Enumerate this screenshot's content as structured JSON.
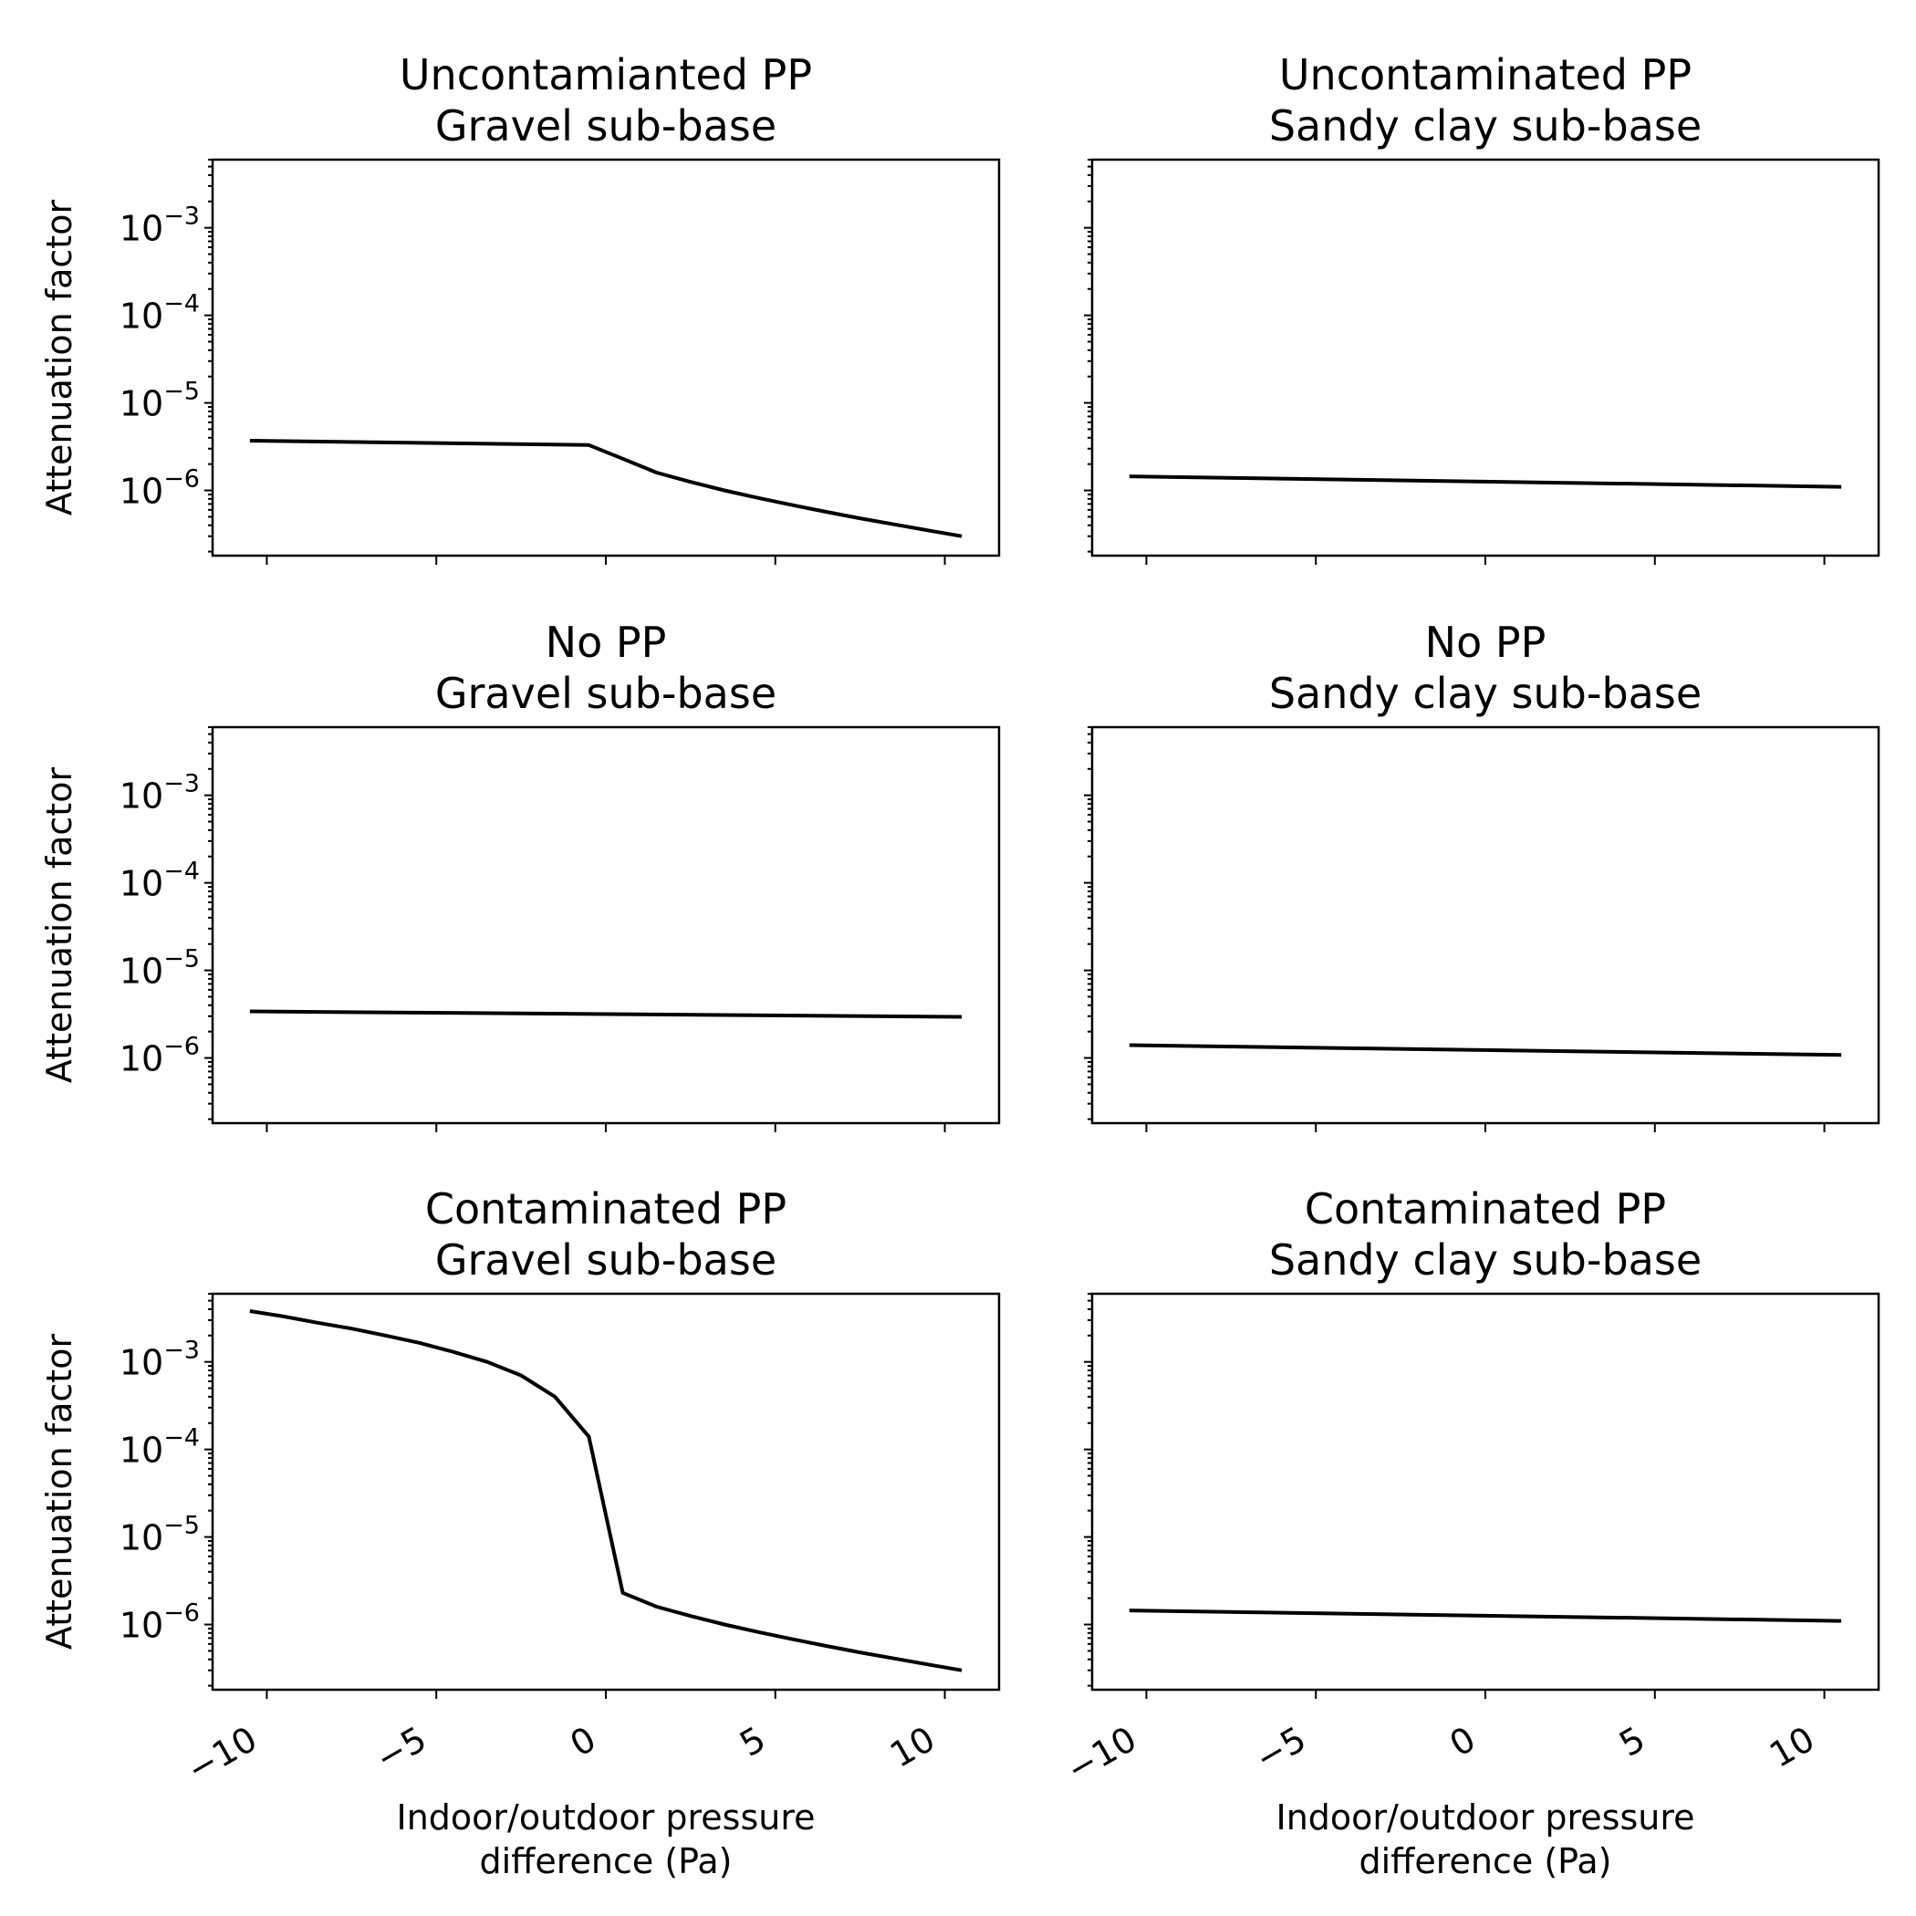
{
  "chart_data": [
    {
      "type": "line",
      "title": [
        "Uncontamianted PP",
        "Gravel sub-base"
      ],
      "ylabel": "Attenuation factor",
      "xlabel": "",
      "y_scale": "log",
      "xlim": [
        -11.6,
        11.6
      ],
      "ylim": [
        1.8e-07,
        0.006
      ],
      "x_ticks": [
        -10,
        -5,
        0,
        5,
        10
      ],
      "y_ticks": [
        {
          "value": 0.001,
          "base": "10",
          "exp": "−3"
        },
        {
          "value": 0.0001,
          "base": "10",
          "exp": "−4"
        },
        {
          "value": 1e-05,
          "base": "10",
          "exp": "−5"
        },
        {
          "value": 1e-06,
          "base": "10",
          "exp": "−6"
        }
      ],
      "series": [
        {
          "color": "#000000",
          "x": [
            -10.5,
            -0.5,
            0.5,
            1.5,
            2.5,
            3.5,
            4.5,
            5.5,
            6.5,
            7.5,
            8.5,
            9.5,
            10.5
          ],
          "y": [
            3.7e-06,
            3.3e-06,
            2.3e-06,
            1.6e-06,
            1.25e-06,
            1e-06,
            8.2e-07,
            6.8e-07,
            5.7e-07,
            4.8e-07,
            4.1e-07,
            3.5e-07,
            3e-07
          ]
        }
      ]
    },
    {
      "type": "line",
      "title": [
        "Uncontaminated PP",
        "Sandy clay sub-base"
      ],
      "ylabel": "",
      "xlabel": "",
      "y_scale": "log",
      "xlim": [
        -11.6,
        11.6
      ],
      "ylim": [
        1.8e-07,
        0.006
      ],
      "x_ticks": [
        -10,
        -5,
        0,
        5,
        10
      ],
      "y_ticks": [],
      "series": [
        {
          "color": "#000000",
          "x": [
            -10.5,
            10.5
          ],
          "y": [
            1.45e-06,
            1.1e-06
          ]
        }
      ]
    },
    {
      "type": "line",
      "title": [
        "No PP",
        "Gravel sub-base"
      ],
      "ylabel": "Attenuation factor",
      "xlabel": "",
      "y_scale": "log",
      "xlim": [
        -11.6,
        11.6
      ],
      "ylim": [
        1.8e-07,
        0.006
      ],
      "x_ticks": [
        -10,
        -5,
        0,
        5,
        10
      ],
      "y_ticks": [
        {
          "value": 0.001,
          "base": "10",
          "exp": "−3"
        },
        {
          "value": 0.0001,
          "base": "10",
          "exp": "−4"
        },
        {
          "value": 1e-05,
          "base": "10",
          "exp": "−5"
        },
        {
          "value": 1e-06,
          "base": "10",
          "exp": "−6"
        }
      ],
      "series": [
        {
          "color": "#000000",
          "x": [
            -10.5,
            10.5
          ],
          "y": [
            3.4e-06,
            2.95e-06
          ]
        }
      ]
    },
    {
      "type": "line",
      "title": [
        "No PP",
        "Sandy clay sub-base"
      ],
      "ylabel": "",
      "xlabel": "",
      "y_scale": "log",
      "xlim": [
        -11.6,
        11.6
      ],
      "ylim": [
        1.8e-07,
        0.006
      ],
      "x_ticks": [
        -10,
        -5,
        0,
        5,
        10
      ],
      "y_ticks": [],
      "series": [
        {
          "color": "#000000",
          "x": [
            -10.5,
            10.5
          ],
          "y": [
            1.4e-06,
            1.08e-06
          ]
        }
      ]
    },
    {
      "type": "line",
      "title": [
        "Contaminated PP",
        "Gravel sub-base"
      ],
      "ylabel": "Attenuation factor",
      "xlabel": [
        "Indoor/outdoor pressure",
        "difference (Pa)"
      ],
      "y_scale": "log",
      "xlim": [
        -11.6,
        11.6
      ],
      "ylim": [
        1.8e-07,
        0.006
      ],
      "x_ticks": [
        -10,
        -5,
        0,
        5,
        10
      ],
      "x_tick_labels": [
        "−10",
        "−5",
        "0",
        "5",
        "10"
      ],
      "y_ticks": [
        {
          "value": 0.001,
          "base": "10",
          "exp": "−3"
        },
        {
          "value": 0.0001,
          "base": "10",
          "exp": "−4"
        },
        {
          "value": 1e-05,
          "base": "10",
          "exp": "−5"
        },
        {
          "value": 1e-06,
          "base": "10",
          "exp": "−6"
        }
      ],
      "series": [
        {
          "color": "#000000",
          "x": [
            -10.5,
            -9.5,
            -8.5,
            -7.5,
            -6.5,
            -5.5,
            -4.5,
            -3.5,
            -2.5,
            -1.5,
            -0.5,
            0.5,
            1.5,
            2.5,
            3.5,
            4.5,
            5.5,
            6.5,
            7.5,
            8.5,
            9.5,
            10.5
          ],
          "y": [
            0.0038,
            0.0033,
            0.0028,
            0.0024,
            0.002,
            0.00165,
            0.0013,
            0.001,
            0.0007,
            0.0004,
            0.00014,
            2.3e-06,
            1.6e-06,
            1.25e-06,
            1e-06,
            8.2e-07,
            6.8e-07,
            5.7e-07,
            4.8e-07,
            4.1e-07,
            3.5e-07,
            3e-07
          ]
        }
      ]
    },
    {
      "type": "line",
      "title": [
        "Contaminated PP",
        "Sandy clay sub-base"
      ],
      "ylabel": "",
      "xlabel": [
        "Indoor/outdoor pressure",
        "difference (Pa)"
      ],
      "y_scale": "log",
      "xlim": [
        -11.6,
        11.6
      ],
      "ylim": [
        1.8e-07,
        0.006
      ],
      "x_ticks": [
        -10,
        -5,
        0,
        5,
        10
      ],
      "x_tick_labels": [
        "−10",
        "−5",
        "0",
        "5",
        "10"
      ],
      "y_ticks": [],
      "series": [
        {
          "color": "#000000",
          "x": [
            -10.5,
            10.5
          ],
          "y": [
            1.45e-06,
            1.1e-06
          ]
        }
      ]
    }
  ]
}
